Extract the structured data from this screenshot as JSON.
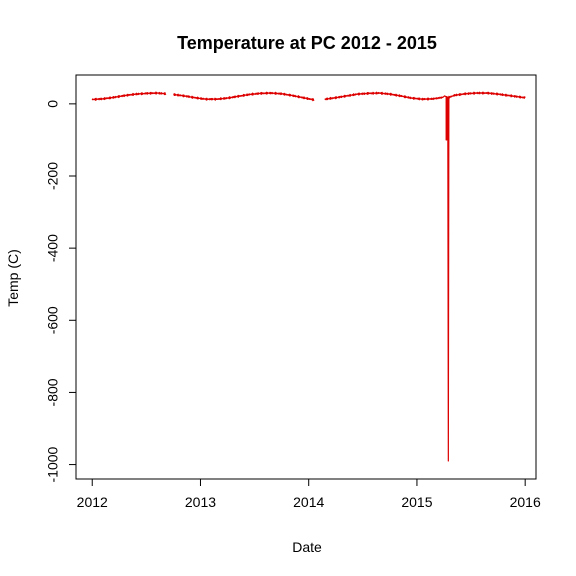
{
  "chart_data": {
    "type": "line",
    "title": "Temperature at PC 2012 - 2015",
    "xlabel": "Date",
    "ylabel": "Temp (C)",
    "xlim": [
      2011.85,
      2016.1
    ],
    "ylim": [
      -1040,
      80
    ],
    "x_ticks": [
      2012,
      2013,
      2014,
      2015,
      2016
    ],
    "x_tick_labels": [
      "2012",
      "2013",
      "2014",
      "2015",
      "2016"
    ],
    "y_ticks": [
      0,
      -200,
      -400,
      -600,
      -800,
      -1000
    ],
    "y_tick_labels": [
      "0",
      "-200",
      "-400",
      "-600",
      "-800",
      "-1000"
    ],
    "grid": false,
    "series": [
      {
        "color": "#dd0000",
        "segments": [
          [
            [
              2012.0,
              12
            ],
            [
              2012.1,
              14
            ],
            [
              2012.2,
              18
            ],
            [
              2012.3,
              23
            ],
            [
              2012.4,
              27
            ],
            [
              2012.5,
              29
            ],
            [
              2012.6,
              30
            ],
            [
              2012.68,
              28
            ]
          ],
          [
            [
              2012.75,
              26
            ],
            [
              2012.85,
              22
            ],
            [
              2012.95,
              17
            ],
            [
              2013.05,
              13
            ],
            [
              2013.15,
              13
            ],
            [
              2013.25,
              16
            ],
            [
              2013.35,
              21
            ],
            [
              2013.45,
              26
            ],
            [
              2013.55,
              29
            ],
            [
              2013.65,
              30
            ],
            [
              2013.75,
              28
            ],
            [
              2013.85,
              23
            ],
            [
              2013.95,
              17
            ],
            [
              2014.05,
              11
            ]
          ],
          [
            [
              2014.15,
              13
            ],
            [
              2014.25,
              17
            ],
            [
              2014.35,
              22
            ],
            [
              2014.45,
              27
            ],
            [
              2014.55,
              29
            ],
            [
              2014.65,
              30
            ],
            [
              2014.75,
              27
            ],
            [
              2014.85,
              22
            ],
            [
              2014.95,
              16
            ],
            [
              2015.05,
              13
            ],
            [
              2015.15,
              14
            ],
            [
              2015.24,
              18
            ],
            [
              2015.255,
              22
            ],
            [
              2015.27,
              20
            ],
            [
              2015.27,
              -100
            ],
            [
              2015.275,
              -100
            ],
            [
              2015.275,
              20
            ],
            [
              2015.285,
              18
            ],
            [
              2015.29,
              -990
            ],
            [
              2015.295,
              18
            ],
            [
              2015.35,
              24
            ],
            [
              2015.45,
              28
            ],
            [
              2015.55,
              30
            ],
            [
              2015.65,
              30
            ],
            [
              2015.75,
              27
            ],
            [
              2015.85,
              23
            ],
            [
              2015.95,
              19
            ],
            [
              2016.0,
              17
            ]
          ]
        ]
      }
    ]
  }
}
